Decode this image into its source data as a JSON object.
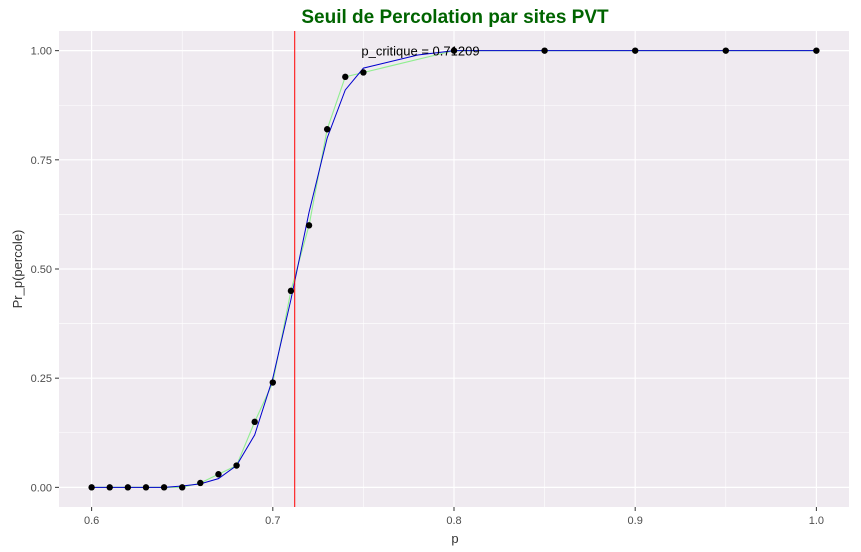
{
  "chart_data": {
    "type": "scatter",
    "title": "Seuil de Percolation par sites PVT",
    "title_color": "#006400",
    "xlabel": "p",
    "ylabel": "Pr_p(percole)",
    "xlim": [
      0.6,
      1.0
    ],
    "ylim": [
      0.0,
      1.0
    ],
    "x_ticks": [
      0.6,
      0.7,
      0.8,
      0.9,
      1.0
    ],
    "x_tick_labels": [
      "0.6",
      "0.7",
      "0.8",
      "0.9",
      "1.0"
    ],
    "y_ticks": [
      0.0,
      0.25,
      0.5,
      0.75,
      1.0
    ],
    "y_tick_labels": [
      "0.00",
      "0.25",
      "0.50",
      "0.75",
      "1.00"
    ],
    "grid": true,
    "background_color": "#EFEAF0",
    "points": {
      "x": [
        0.6,
        0.61,
        0.62,
        0.63,
        0.64,
        0.65,
        0.66,
        0.67,
        0.68,
        0.69,
        0.7,
        0.71,
        0.72,
        0.73,
        0.74,
        0.75,
        0.8,
        0.85,
        0.9,
        0.95,
        1.0
      ],
      "y": [
        0.0,
        0.0,
        0.0,
        0.0,
        0.0,
        0.0,
        0.01,
        0.03,
        0.05,
        0.15,
        0.24,
        0.45,
        0.6,
        0.82,
        0.94,
        0.95,
        1.0,
        1.0,
        1.0,
        1.0,
        1.0
      ],
      "color": "#000000"
    },
    "series": [
      {
        "color": "#90EE90",
        "x": [
          0.6,
          0.61,
          0.62,
          0.63,
          0.64,
          0.65,
          0.66,
          0.67,
          0.68,
          0.69,
          0.7,
          0.71,
          0.72,
          0.73,
          0.74,
          0.75,
          0.8,
          0.85,
          0.9,
          0.95,
          1.0
        ],
        "y": [
          0.0,
          0.0,
          0.0,
          0.0,
          0.0,
          0.0,
          0.01,
          0.03,
          0.05,
          0.15,
          0.24,
          0.45,
          0.6,
          0.82,
          0.94,
          0.95,
          1.0,
          1.0,
          1.0,
          1.0,
          1.0
        ]
      },
      {
        "color": "#0000CD",
        "x": [
          0.6,
          0.61,
          0.62,
          0.63,
          0.64,
          0.65,
          0.66,
          0.67,
          0.68,
          0.69,
          0.7,
          0.71,
          0.72,
          0.73,
          0.74,
          0.75,
          0.76,
          0.77,
          0.78,
          0.79,
          0.8,
          0.85,
          0.9,
          0.95,
          1.0
        ],
        "y": [
          0.0,
          0.0,
          0.0,
          0.0,
          0.0,
          0.003,
          0.008,
          0.02,
          0.05,
          0.12,
          0.25,
          0.43,
          0.63,
          0.8,
          0.91,
          0.96,
          0.97,
          0.98,
          0.99,
          0.995,
          1.0,
          1.0,
          1.0,
          1.0,
          1.0
        ]
      }
    ],
    "vline": {
      "x": 0.71209,
      "color": "#FF0000"
    },
    "annotation": {
      "text": "p_critique = 0.71209",
      "x": 0.7815,
      "y": 1.0
    }
  }
}
